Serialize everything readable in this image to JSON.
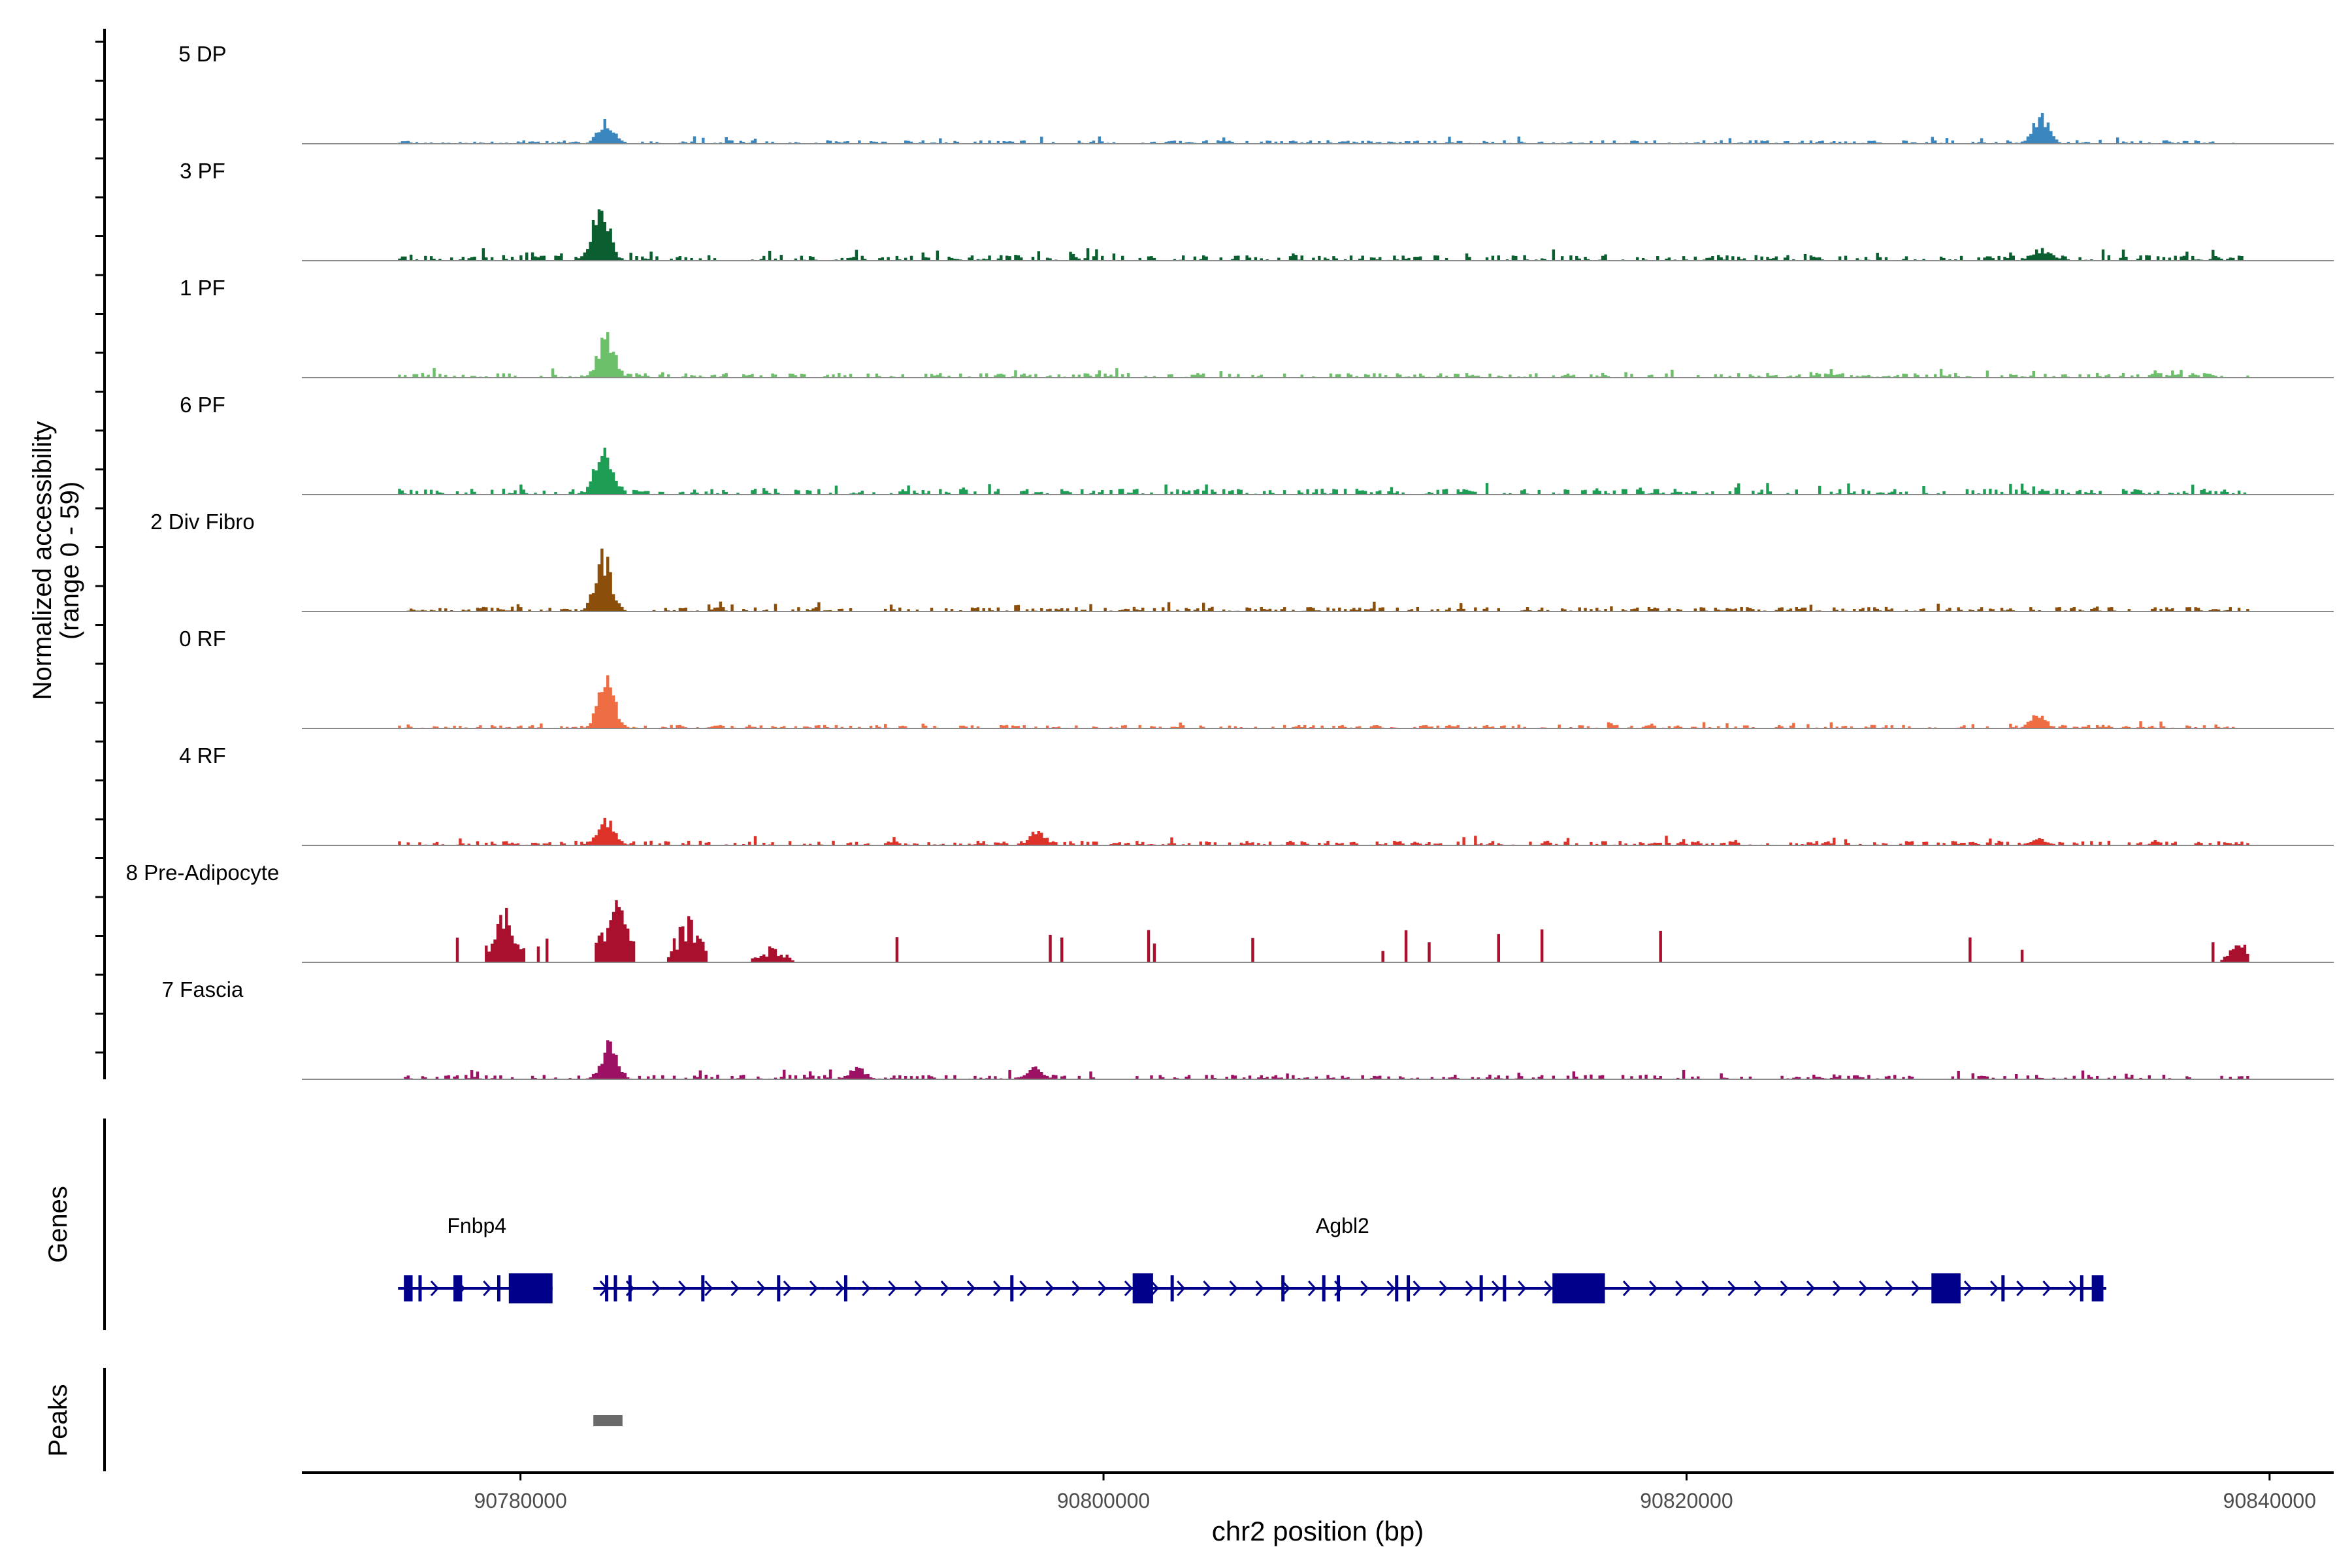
{
  "chart_data": {
    "type": "coverage",
    "y_axis_label": "Normalized accessibility",
    "y_axis_range_label": "(range 0 - 59)",
    "ylim": [
      0,
      59
    ],
    "x_axis_label": "chr2 position (bp)",
    "xlim": [
      90772500,
      90842200
    ],
    "x_ticks": [
      {
        "value": 90780000,
        "label": "90780000"
      },
      {
        "value": 90800000,
        "label": "90800000"
      },
      {
        "value": 90820000,
        "label": "90820000"
      },
      {
        "value": 90840000,
        "label": "90840000"
      }
    ],
    "data_start": 90775800,
    "data_end": 90839300,
    "tracks": [
      {
        "name": "5 DP",
        "color": "#3a87c0",
        "baseline": 1.5,
        "seed": 11,
        "sparse": false,
        "peaks": [
          {
            "x": 90782900,
            "h": 16
          },
          {
            "x": 90832100,
            "h": 20
          }
        ]
      },
      {
        "name": "3 PF",
        "color": "#0b5e2f",
        "baseline": 2.5,
        "seed": 23,
        "sparse": false,
        "peaks": [
          {
            "x": 90782700,
            "h": 44
          },
          {
            "x": 90832100,
            "h": 8
          }
        ]
      },
      {
        "name": "1 PF",
        "color": "#6cc06a",
        "baseline": 2,
        "seed": 37,
        "sparse": false,
        "peaks": [
          {
            "x": 90782900,
            "h": 30
          }
        ]
      },
      {
        "name": "6 PF",
        "color": "#1e9e55",
        "baseline": 2.5,
        "seed": 41,
        "sparse": false,
        "peaks": [
          {
            "x": 90782800,
            "h": 36
          }
        ]
      },
      {
        "name": "2 Div Fibro",
        "color": "#8b4e0b",
        "baseline": 2,
        "seed": 53,
        "sparse": false,
        "peaks": [
          {
            "x": 90782800,
            "h": 39
          }
        ]
      },
      {
        "name": "0 RF",
        "color": "#ef6d43",
        "baseline": 1.5,
        "seed": 61,
        "sparse": false,
        "peaks": [
          {
            "x": 90782900,
            "h": 35
          },
          {
            "x": 90832000,
            "h": 10
          }
        ]
      },
      {
        "name": "4 RF",
        "color": "#dc3228",
        "baseline": 2,
        "seed": 73,
        "sparse": false,
        "peaks": [
          {
            "x": 90782900,
            "h": 20
          },
          {
            "x": 90797700,
            "h": 10
          },
          {
            "x": 90832000,
            "h": 5
          }
        ]
      },
      {
        "name": "8 Pre-Adipocyte",
        "color": "#a8102e",
        "baseline": 0,
        "seed": 89,
        "sparse": true,
        "peaks": [
          {
            "x": 90779400,
            "h": 37
          },
          {
            "x": 90783200,
            "h": 53
          },
          {
            "x": 90785700,
            "h": 31
          },
          {
            "x": 90788600,
            "h": 12
          },
          {
            "x": 90839000,
            "h": 14
          }
        ]
      },
      {
        "name": "7 Fascia",
        "color": "#9c1163",
        "baseline": 2,
        "seed": 97,
        "sparse": false,
        "peaks": [
          {
            "x": 90783000,
            "h": 25
          },
          {
            "x": 90791500,
            "h": 8
          },
          {
            "x": 90797600,
            "h": 8
          }
        ]
      }
    ],
    "genes_label": "Genes",
    "gene_color": "#00008b",
    "genes": [
      {
        "name": "Fnbp4",
        "label_x": 90778500,
        "start": 90775800,
        "end": 90781100,
        "exons": [
          [
            90776000,
            90776300
          ],
          [
            90776500,
            90776600
          ],
          [
            90777700,
            90778000
          ],
          [
            90779200,
            90779300
          ],
          [
            90779600,
            90781100
          ]
        ]
      },
      {
        "name": "Agbl2",
        "label_x": 90808200,
        "start": 90782500,
        "end": 90834400,
        "exons": [
          [
            90782900,
            90783000
          ],
          [
            90783200,
            90783300
          ],
          [
            90783700,
            90783800
          ],
          [
            90786200,
            90786300
          ],
          [
            90788800,
            90788900
          ],
          [
            90791100,
            90791200
          ],
          [
            90796800,
            90796900
          ],
          [
            90801000,
            90801700
          ],
          [
            90802300,
            90802400
          ],
          [
            90806100,
            90806200
          ],
          [
            90807500,
            90807600
          ],
          [
            90808000,
            90808100
          ],
          [
            90810000,
            90810100
          ],
          [
            90810400,
            90810500
          ],
          [
            90812900,
            90813000
          ],
          [
            90813700,
            90813800
          ],
          [
            90815400,
            90817200
          ],
          [
            90828400,
            90829400
          ],
          [
            90830800,
            90830900
          ],
          [
            90833500,
            90833600
          ],
          [
            90833900,
            90834300
          ]
        ]
      }
    ],
    "peaks_label": "Peaks",
    "peak_regions": [
      {
        "start": 90782500,
        "end": 90783500,
        "color": "#6a6a6a"
      }
    ]
  }
}
